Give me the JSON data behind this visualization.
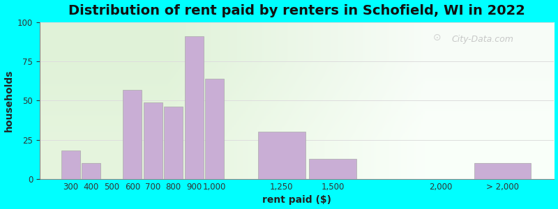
{
  "title": "Distribution of rent paid by renters in Schofield, WI in 2022",
  "xlabel": "rent paid ($)",
  "ylabel": "households",
  "bar_labels": [
    "300",
    "400",
    "500",
    "600",
    "700",
    "800",
    "900",
    "1,000",
    "1,250",
    "1,500",
    "2,000",
    "> 2,000"
  ],
  "bar_values": [
    18,
    10,
    0,
    57,
    49,
    46,
    91,
    64,
    30,
    13,
    0,
    10
  ],
  "bar_color": "#c9aed5",
  "bar_edge_color": "#aaaaaa",
  "ylim": [
    0,
    100
  ],
  "yticks": [
    0,
    25,
    50,
    75,
    100
  ],
  "background_color": "#00ffff",
  "title_fontsize": 14,
  "axis_label_fontsize": 10,
  "tick_fontsize": 8.5,
  "watermark_text": "City-Data.com",
  "x_positions": [
    300,
    400,
    500,
    600,
    700,
    800,
    900,
    1000,
    1250,
    1500,
    2000,
    2300
  ],
  "x_widths": [
    100,
    100,
    100,
    100,
    100,
    100,
    100,
    100,
    250,
    250,
    300,
    300
  ],
  "x_tick_labels": [
    "300",
    "400",
    "500",
    "600",
    "700",
    "800",
    "9001,000",
    "1,250",
    "1,500",
    "2,000",
    "> 2,000",
    ""
  ],
  "xlim": [
    200,
    2700
  ]
}
